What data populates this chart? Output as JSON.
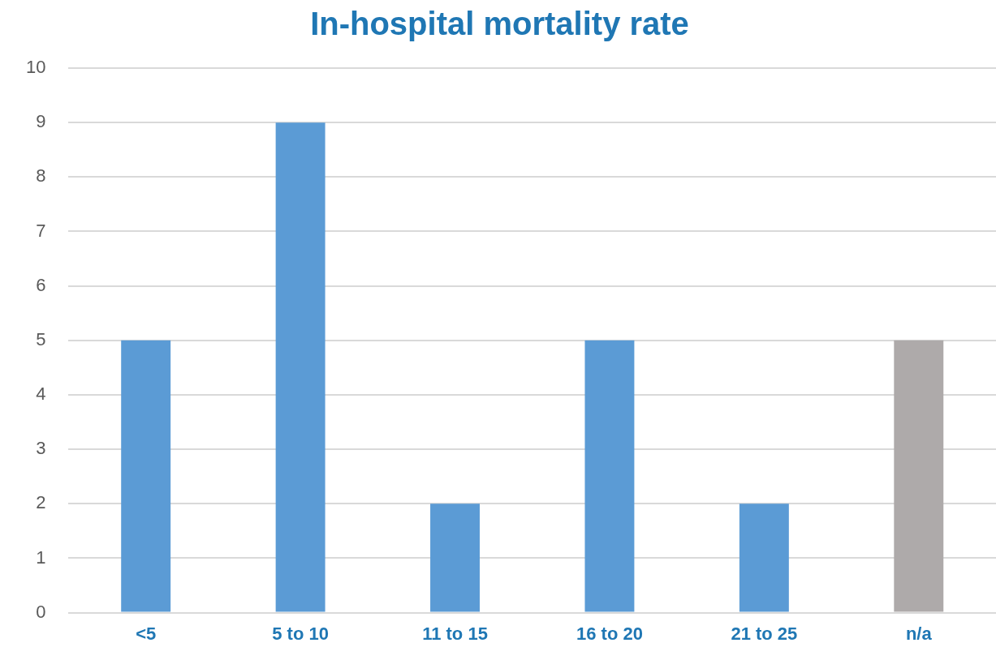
{
  "chart_data": {
    "type": "bar",
    "title": "In-hospital mortality rate",
    "categories": [
      "<5",
      "5 to 10",
      "11 to 15",
      "16 to 20",
      "21 to 25",
      "n/a"
    ],
    "values": [
      5,
      9,
      2,
      5,
      2,
      5
    ],
    "colors": [
      "#5b9bd5",
      "#5b9bd5",
      "#5b9bd5",
      "#5b9bd5",
      "#5b9bd5",
      "#aeaaaa"
    ],
    "ylim": [
      0,
      10
    ],
    "yticks": [
      0,
      1,
      2,
      3,
      4,
      5,
      6,
      7,
      8,
      9,
      10
    ],
    "grid": "y",
    "legend": false
  }
}
